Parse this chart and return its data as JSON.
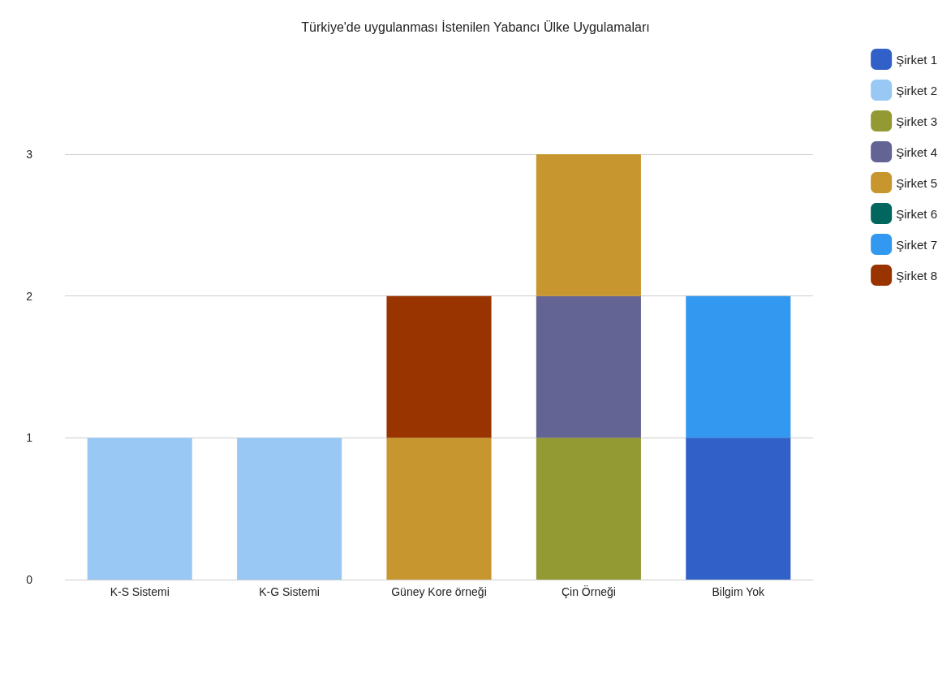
{
  "chart_data": {
    "type": "bar",
    "title": "Türkiye'de uygulanması İstenilen Yabancı Ülke Uygulamaları",
    "categories": [
      "K-S Sistemi",
      "K-G Sistemi",
      "Güney Kore örneği",
      "Çin Örneği",
      "Bilgim Yok"
    ],
    "stacked": true,
    "ylim": [
      0,
      3
    ],
    "yticks": [
      0,
      1,
      2,
      3
    ],
    "grid": "y",
    "legend": "top right",
    "series": [
      {
        "name": "Şirket 1",
        "color": "#3060c8",
        "values": [
          null,
          null,
          null,
          null,
          1
        ]
      },
      {
        "name": "Şirket 2",
        "color": "#99c8f5",
        "values": [
          1,
          1,
          null,
          null,
          null
        ]
      },
      {
        "name": "Şirket 3",
        "color": "#949a33",
        "values": [
          null,
          null,
          null,
          1,
          null
        ]
      },
      {
        "name": "Şirket 4",
        "color": "#636494",
        "values": [
          null,
          null,
          null,
          1,
          null
        ]
      },
      {
        "name": "Şirket 5",
        "color": "#c8962f",
        "values": [
          null,
          null,
          1,
          1,
          null
        ]
      },
      {
        "name": "Şirket 6",
        "color": "#00665e",
        "values": [
          null,
          null,
          null,
          null,
          null
        ]
      },
      {
        "name": "Şirket 7",
        "color": "#3399f0",
        "values": [
          null,
          null,
          null,
          null,
          1
        ]
      },
      {
        "name": "Şirket 8",
        "color": "#993300",
        "values": [
          null,
          null,
          1,
          null,
          null
        ]
      }
    ]
  }
}
